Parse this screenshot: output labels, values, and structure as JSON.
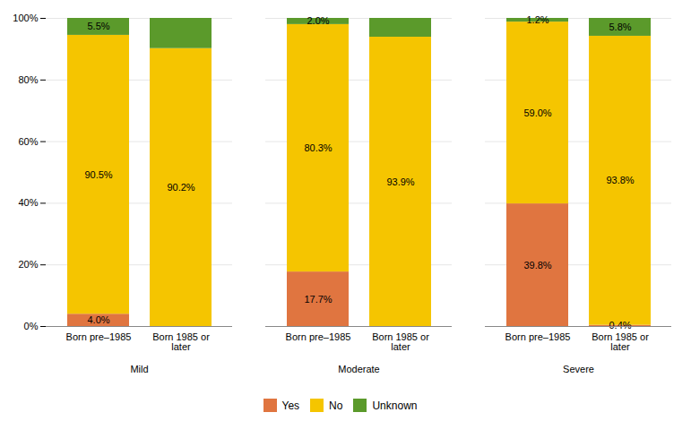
{
  "chart_data": {
    "type": "bar",
    "stacked": true,
    "data_labels": true,
    "grid": true,
    "legend": "bottom",
    "categories": [
      "Born pre–1985",
      "Born 1985 or\nlater",
      "Born pre–1985",
      "Born 1985 or\nlater",
      "Born pre–1985",
      "Born 1985 or\nlater"
    ],
    "groups": [
      "Mild",
      "Moderate",
      "Severe"
    ],
    "series": [
      {
        "name": "Yes",
        "color": "#E07540",
        "values": [
          4.0,
          0.0,
          17.7,
          0.0,
          39.8,
          0.4
        ],
        "value_labels": [
          "4.0%",
          null,
          "17.7%",
          null,
          "39.8%",
          "0.4%"
        ]
      },
      {
        "name": "No",
        "color": "#F5C500",
        "values": [
          90.5,
          90.2,
          80.3,
          93.9,
          59.0,
          93.8
        ],
        "value_labels": [
          "90.5%",
          "90.2%",
          "80.3%",
          "93.9%",
          "59.0%",
          "93.8%"
        ]
      },
      {
        "name": "Unknown",
        "color": "#5B9A2B",
        "values": [
          5.5,
          9.8,
          2.0,
          6.1,
          1.2,
          5.8
        ],
        "value_labels": [
          "5.5%",
          null,
          "2.0%",
          null,
          "1.2%",
          "5.8%"
        ]
      }
    ],
    "ylim": [
      0,
      100
    ],
    "yticks": [
      {
        "value": 0,
        "label": "0%"
      },
      {
        "value": 20,
        "label": "20%"
      },
      {
        "value": 40,
        "label": "40%"
      },
      {
        "value": 60,
        "label": "60%"
      },
      {
        "value": 80,
        "label": "80%"
      },
      {
        "value": 100,
        "label": "100%"
      }
    ]
  }
}
